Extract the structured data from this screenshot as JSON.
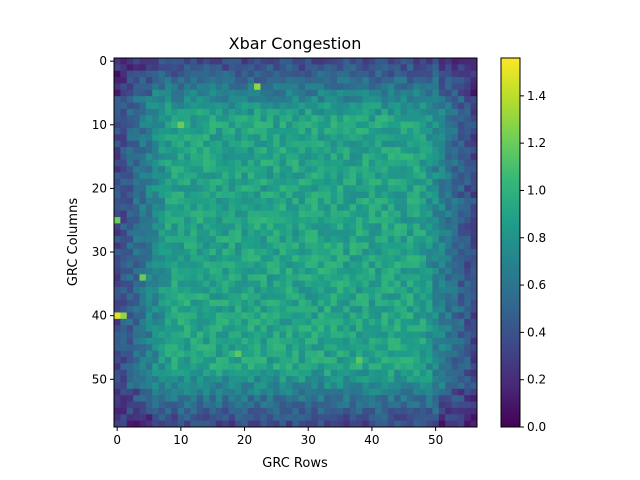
{
  "chart_data": {
    "type": "heatmap",
    "title": "Xbar Congestion",
    "xlabel": "GRC Rows",
    "ylabel": "GRC Columns",
    "n_cols": 57,
    "n_rows": 58,
    "x_ticks": [
      0,
      10,
      20,
      30,
      40,
      50
    ],
    "y_ticks": [
      0,
      10,
      20,
      30,
      40,
      50
    ],
    "y_axis_inverted": true,
    "colormap": "viridis",
    "colormap_stops": [
      "#440154",
      "#482878",
      "#3e4989",
      "#31688e",
      "#26828e",
      "#1f9e89",
      "#35b779",
      "#6ece58",
      "#b5de2b",
      "#fde725"
    ],
    "vmin": 0.0,
    "vmax": 1.56,
    "colorbar_ticks": [
      0.0,
      0.2,
      0.4,
      0.6,
      0.8,
      1.0,
      1.2,
      1.4
    ],
    "colorbar_position": "right",
    "values_description_free": true,
    "center_value": 0.9,
    "edge_value": 0.35,
    "hotspots": [
      {
        "col": 0,
        "row": 40,
        "value": 1.5
      },
      {
        "col": 1,
        "row": 40,
        "value": 1.3
      },
      {
        "col": 22,
        "row": 4,
        "value": 1.3
      },
      {
        "col": 10,
        "row": 10,
        "value": 1.2
      },
      {
        "col": 4,
        "row": 34,
        "value": 1.2
      },
      {
        "col": 0,
        "row": 25,
        "value": 1.2
      },
      {
        "col": 19,
        "row": 46,
        "value": 1.15
      },
      {
        "col": 38,
        "row": 47,
        "value": 1.15
      }
    ]
  }
}
